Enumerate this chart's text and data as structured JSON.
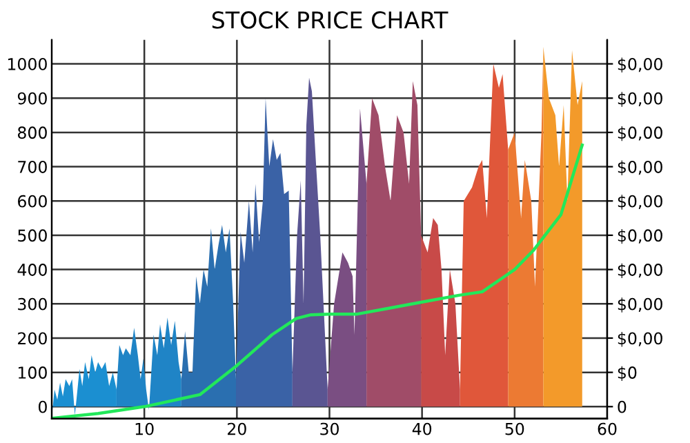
{
  "chart_data": {
    "type": "area",
    "title": "STOCK PRICE CHART",
    "xlim": [
      0,
      60
    ],
    "xticks": [
      10,
      20,
      30,
      40,
      50,
      60
    ],
    "ylim": [
      -35,
      1070
    ],
    "yticks": [
      0,
      100,
      200,
      300,
      400,
      500,
      600,
      700,
      800,
      900,
      1000
    ],
    "annotations": [
      "0",
      "$0",
      "$0,00",
      "$0,00",
      "$0,00",
      "$0,00",
      "$0,00",
      "$0,00",
      "$0,00",
      "$0,00",
      "$0,00"
    ],
    "grid": true,
    "legend": false,
    "series": [
      {
        "color": "#1b8fd1",
        "x": [
          0,
          0.3,
          0.6,
          0.9,
          1.2,
          1.5,
          1.9,
          2.2,
          2.5,
          3.0,
          3.3,
          3.6,
          4.0,
          4.3,
          4.7,
          5.0,
          5.4,
          5.8,
          6.2,
          6.6,
          7.0
        ],
        "values": [
          -30,
          50,
          20,
          70,
          30,
          80,
          60,
          80,
          -25,
          110,
          60,
          130,
          80,
          150,
          100,
          130,
          110,
          130,
          60,
          100,
          50
        ]
      },
      {
        "color": "#1f84c6",
        "x": [
          7.0,
          7.3,
          7.7,
          8.0,
          8.5,
          8.9,
          9.3,
          9.6,
          9.9,
          10.2,
          10.5,
          11.0,
          11.4,
          11.7,
          12.1,
          12.5,
          12.9,
          13.3,
          13.7,
          14.0
        ],
        "values": [
          50,
          180,
          150,
          170,
          150,
          230,
          150,
          80,
          140,
          50,
          -10,
          210,
          150,
          240,
          170,
          260,
          180,
          250,
          130,
          80
        ]
      },
      {
        "color": "#2a6fb0",
        "x": [
          14.0,
          14.4,
          14.8,
          15.2,
          15.6,
          16.0,
          16.4,
          16.8,
          17.2,
          17.6,
          18.0,
          18.4,
          18.8,
          19.2,
          19.6,
          19.9
        ],
        "values": [
          80,
          220,
          100,
          100,
          380,
          300,
          400,
          350,
          520,
          400,
          470,
          530,
          450,
          520,
          300,
          80
        ]
      },
      {
        "color": "#3a62a6",
        "x": [
          19.9,
          20.4,
          20.8,
          21.3,
          21.7,
          22.0,
          22.4,
          22.8,
          23.1,
          23.5,
          23.9,
          24.3,
          24.7,
          25.1,
          25.6,
          26.0
        ],
        "values": [
          80,
          510,
          420,
          600,
          450,
          650,
          480,
          600,
          900,
          700,
          780,
          720,
          740,
          620,
          630,
          100
        ]
      },
      {
        "color": "#5a5592",
        "x": [
          26.0,
          26.5,
          26.9,
          27.2,
          27.5,
          27.8,
          28.1,
          28.5,
          29.0,
          29.8
        ],
        "values": [
          100,
          500,
          660,
          300,
          820,
          960,
          920,
          730,
          500,
          50
        ]
      },
      {
        "color": "#7a4e82",
        "x": [
          29.8,
          30.5,
          31.4,
          32.0,
          32.5,
          32.7,
          33.3,
          34.0
        ],
        "values": [
          50,
          300,
          450,
          420,
          380,
          210,
          870,
          650
        ]
      },
      {
        "color": "#a04c68",
        "x": [
          34.0,
          34.6,
          35.3,
          36.0,
          36.6,
          37.3,
          38.0,
          38.6,
          39.0,
          39.5,
          39.9
        ],
        "values": [
          650,
          900,
          850,
          700,
          600,
          850,
          800,
          650,
          950,
          880,
          500
        ]
      },
      {
        "color": "#c84a48",
        "x": [
          39.9,
          40.6,
          41.2,
          41.7,
          42.1,
          42.5,
          43.0,
          43.6,
          44.1
        ],
        "values": [
          500,
          450,
          550,
          530,
          400,
          150,
          400,
          300,
          50
        ]
      },
      {
        "color": "#e0573a",
        "x": [
          44.1,
          44.5,
          45.4,
          46.1,
          46.5,
          47.0,
          47.7,
          48.3,
          48.7,
          49.3
        ],
        "values": [
          50,
          600,
          640,
          700,
          720,
          550,
          1000,
          930,
          970,
          750
        ]
      },
      {
        "color": "#ec7a33",
        "x": [
          49.3,
          50.0,
          50.7,
          51.1,
          51.8,
          52.2,
          52.9,
          53.1
        ],
        "values": [
          750,
          800,
          550,
          720,
          600,
          350,
          800,
          1050
        ]
      },
      {
        "color": "#f39a2a",
        "x": [
          53.1,
          53.7,
          54.4,
          54.8,
          55.3,
          55.7,
          56.2,
          56.8,
          57.3
        ],
        "values": [
          1050,
          900,
          850,
          700,
          880,
          600,
          1040,
          880,
          950
        ]
      },
      {
        "type": "line",
        "color": "#22e85a",
        "marker": "none",
        "x": [
          0,
          5,
          10,
          16,
          20,
          23.8,
          26.4,
          28,
          30,
          33,
          36,
          40,
          44,
          46.5,
          48.5,
          50,
          52,
          55,
          57.3
        ],
        "values": [
          -34,
          -20,
          0,
          35,
          120,
          210,
          257,
          268,
          270,
          270,
          285,
          305,
          325,
          335,
          372,
          400,
          455,
          560,
          763
        ]
      }
    ]
  }
}
